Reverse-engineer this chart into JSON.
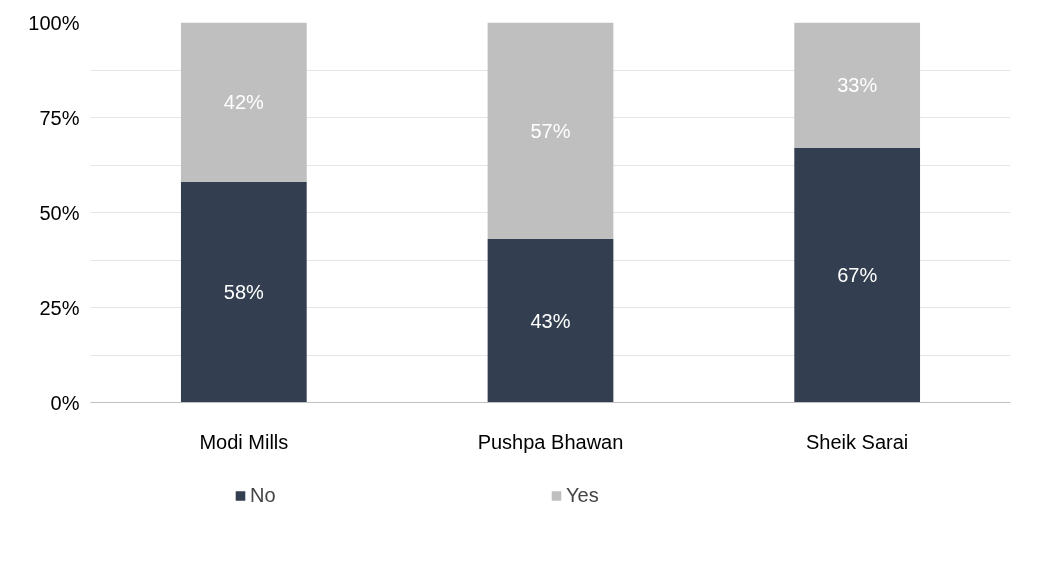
{
  "chart_data": {
    "type": "bar",
    "stacked": true,
    "categories": [
      "Modi Mills",
      "Pushpa Bhawan",
      "Sheik Sarai"
    ],
    "series": [
      {
        "name": "No",
        "color": "#333f50",
        "values": [
          58,
          43,
          67
        ],
        "value_labels": [
          "58%",
          "43%",
          "67%"
        ]
      },
      {
        "name": "Yes",
        "color": "#bfbfbf",
        "values": [
          42,
          57,
          33
        ],
        "value_labels": [
          "42%",
          "57%",
          "33%"
        ]
      }
    ],
    "ylim": [
      0,
      100
    ],
    "yticks": [
      {
        "value": 0,
        "label": "0%"
      },
      {
        "value": 12.5,
        "label": null
      },
      {
        "value": 25,
        "label": "25%"
      },
      {
        "value": 37.5,
        "label": null
      },
      {
        "value": 50,
        "label": "50%"
      },
      {
        "value": 62.5,
        "label": null
      },
      {
        "value": 75,
        "label": "75%"
      },
      {
        "value": 87.5,
        "label": null
      },
      {
        "value": 100,
        "label": "100%"
      }
    ],
    "grid": "y",
    "legend": "bottom",
    "data_labels": true
  }
}
